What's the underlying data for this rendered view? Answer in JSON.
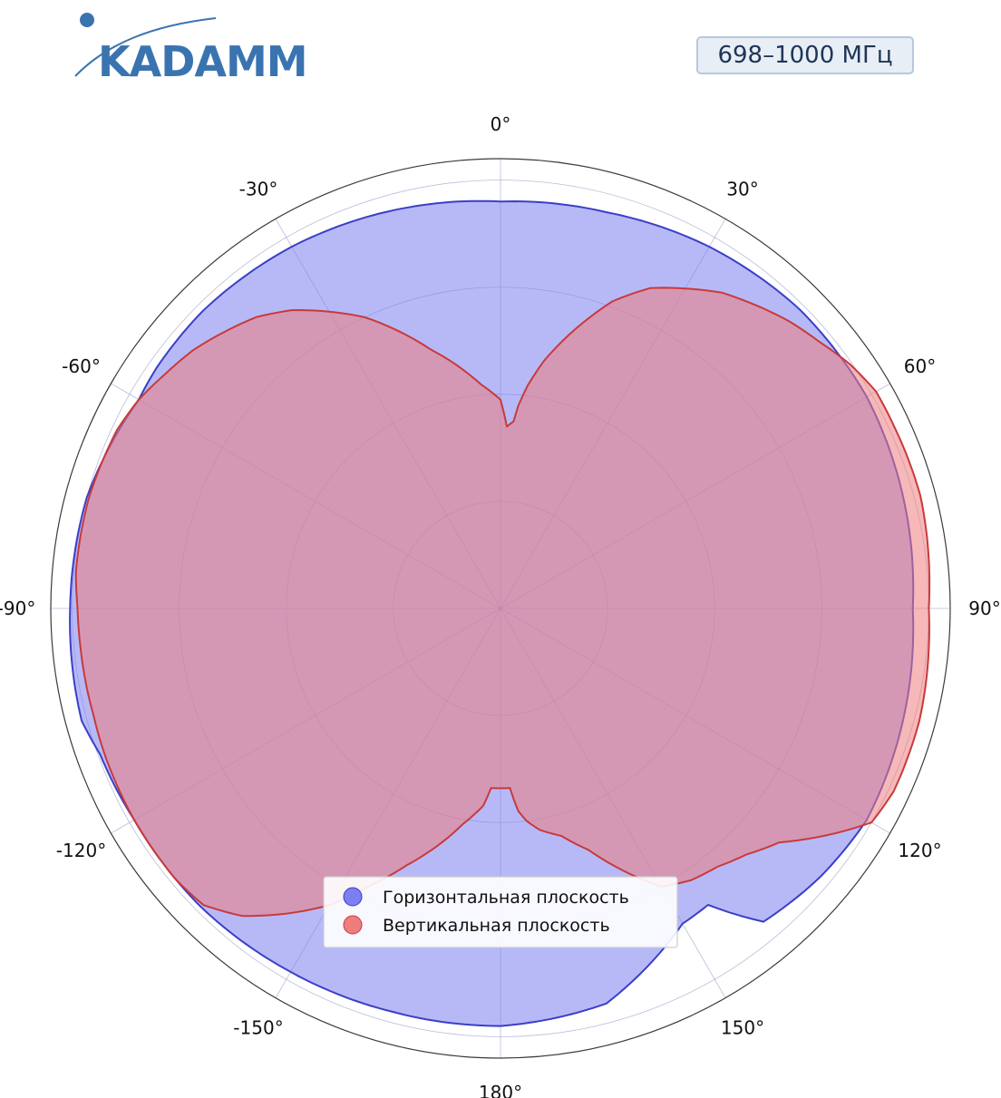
{
  "brand": {
    "logo_text": "KADAMM",
    "color": "#3a74b0"
  },
  "badge": {
    "text": "698–1000 МГц"
  },
  "colors": {
    "horizontal_fill": "#7b7ff0",
    "horizontal_line": "#3a3fc8",
    "vertical_fill": "#ee7d7d",
    "vertical_line": "#c83a3a",
    "grid": "#8d8fbf",
    "outer": "#3b3b3b"
  },
  "chart_data": {
    "type": "polar",
    "angle_ticks": [
      "0°",
      "30°",
      "60°",
      "90°",
      "120°",
      "150°",
      "180°",
      "-150°",
      "-120°",
      "-90°",
      "-60°",
      "-30°"
    ],
    "radial_grid": [
      1,
      2,
      3,
      4
    ],
    "rmax": 4.2,
    "legend": [
      "Горизонтальная плоскость",
      "Вертикальная плоскость"
    ],
    "series": [
      {
        "name": "Горизонтальная плоскость",
        "angles": [
          0,
          15,
          30,
          45,
          55,
          60,
          75,
          90,
          105,
          120,
          130,
          140,
          145,
          150,
          165,
          180,
          195,
          210,
          225,
          240,
          250,
          255,
          270,
          285,
          300,
          305,
          315,
          330,
          345
        ],
        "values": [
          3.8,
          3.83,
          3.9,
          3.95,
          3.95,
          3.95,
          3.9,
          3.85,
          3.9,
          3.95,
          3.9,
          3.82,
          3.38,
          3.4,
          3.82,
          3.9,
          3.9,
          3.92,
          3.95,
          3.95,
          3.98,
          4.05,
          4.02,
          4.0,
          3.9,
          3.92,
          3.93,
          3.9,
          3.85
        ]
      },
      {
        "name": "Вертикальная плоскость",
        "angles": [
          0,
          2,
          4,
          5,
          7,
          10,
          15,
          20,
          25,
          30,
          35,
          40,
          45,
          50,
          55,
          60,
          65,
          75,
          90,
          105,
          115,
          120,
          125,
          130,
          135,
          140,
          145,
          150,
          155,
          160,
          165,
          170,
          173,
          175,
          177,
          180,
          183,
          185,
          190,
          195,
          200,
          205,
          210,
          215,
          220,
          225,
          230,
          240,
          250,
          255,
          265,
          270,
          275,
          285,
          295,
          300,
          305,
          310,
          315,
          320,
          325,
          330,
          335,
          340,
          345,
          350,
          355
        ],
        "values": [
          1.95,
          1.7,
          1.75,
          1.9,
          2.1,
          2.35,
          2.7,
          3.05,
          3.3,
          3.45,
          3.6,
          3.7,
          3.8,
          3.88,
          3.98,
          4.05,
          4.05,
          4.06,
          4.0,
          4.05,
          4.05,
          4.0,
          3.7,
          3.4,
          3.25,
          3.15,
          3.1,
          3.0,
          2.7,
          2.4,
          2.2,
          2.1,
          2.0,
          1.9,
          1.68,
          1.68,
          1.68,
          1.85,
          2.05,
          2.3,
          2.55,
          2.85,
          3.2,
          3.48,
          3.75,
          3.92,
          3.95,
          3.95,
          3.94,
          3.93,
          3.94,
          3.95,
          3.98,
          3.98,
          3.95,
          3.9,
          3.82,
          3.75,
          3.65,
          3.55,
          3.4,
          3.2,
          3.0,
          2.75,
          2.5,
          2.3,
          2.1
        ]
      }
    ]
  }
}
